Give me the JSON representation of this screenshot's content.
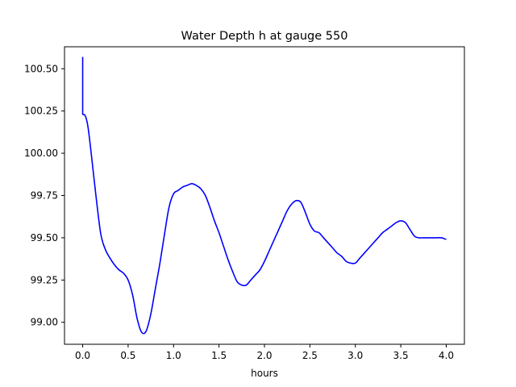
{
  "chart_data": {
    "type": "line",
    "title": "Water Depth h at gauge 550",
    "xlabel": "hours",
    "ylabel": "",
    "xlim": [
      -0.2,
      4.2
    ],
    "ylim": [
      98.87,
      100.63
    ],
    "grid": false,
    "x_ticks": [
      0.0,
      0.5,
      1.0,
      1.5,
      2.0,
      2.5,
      3.0,
      3.5,
      4.0
    ],
    "x_tick_labels": [
      "0.0",
      "0.5",
      "1.0",
      "1.5",
      "2.0",
      "2.5",
      "3.0",
      "3.5",
      "4.0"
    ],
    "y_ticks": [
      99.0,
      99.25,
      99.5,
      99.75,
      100.0,
      100.25,
      100.5
    ],
    "y_tick_labels": [
      "99.00",
      "99.25",
      "99.50",
      "99.75",
      "100.00",
      "100.25",
      "100.50"
    ],
    "series": [
      {
        "color": "#0000ff",
        "x": [
          0.0,
          0.0,
          0.0,
          0.03,
          0.06,
          0.1,
          0.15,
          0.2,
          0.25,
          0.3,
          0.35,
          0.4,
          0.45,
          0.5,
          0.55,
          0.6,
          0.65,
          0.7,
          0.75,
          0.8,
          0.85,
          0.9,
          0.95,
          1.0,
          1.05,
          1.1,
          1.15,
          1.2,
          1.25,
          1.3,
          1.35,
          1.4,
          1.45,
          1.5,
          1.55,
          1.6,
          1.65,
          1.7,
          1.75,
          1.8,
          1.85,
          1.9,
          1.95,
          2.0,
          2.05,
          2.1,
          2.15,
          2.2,
          2.25,
          2.3,
          2.35,
          2.4,
          2.45,
          2.5,
          2.55,
          2.6,
          2.65,
          2.7,
          2.75,
          2.8,
          2.85,
          2.9,
          2.95,
          3.0,
          3.05,
          3.1,
          3.15,
          3.2,
          3.25,
          3.3,
          3.35,
          3.4,
          3.45,
          3.5,
          3.55,
          3.6,
          3.65,
          3.7,
          3.75,
          3.8,
          3.85,
          3.9,
          3.95,
          4.0
        ],
        "y": [
          100.57,
          100.23,
          100.23,
          100.22,
          100.15,
          99.97,
          99.73,
          99.52,
          99.43,
          99.38,
          99.34,
          99.31,
          99.29,
          99.25,
          99.16,
          99.02,
          98.94,
          98.95,
          99.05,
          99.2,
          99.35,
          99.52,
          99.68,
          99.76,
          99.78,
          99.8,
          99.81,
          99.82,
          99.81,
          99.79,
          99.75,
          99.68,
          99.6,
          99.53,
          99.45,
          99.37,
          99.3,
          99.24,
          99.22,
          99.22,
          99.25,
          99.28,
          99.31,
          99.36,
          99.42,
          99.48,
          99.54,
          99.6,
          99.66,
          99.7,
          99.72,
          99.71,
          99.65,
          99.58,
          99.54,
          99.53,
          99.5,
          99.47,
          99.44,
          99.41,
          99.39,
          99.36,
          99.35,
          99.35,
          99.38,
          99.41,
          99.44,
          99.47,
          99.5,
          99.53,
          99.55,
          99.57,
          99.59,
          99.6,
          99.59,
          99.55,
          99.51,
          99.5,
          99.5,
          99.5,
          99.5,
          99.5,
          99.5,
          99.49
        ]
      }
    ]
  }
}
